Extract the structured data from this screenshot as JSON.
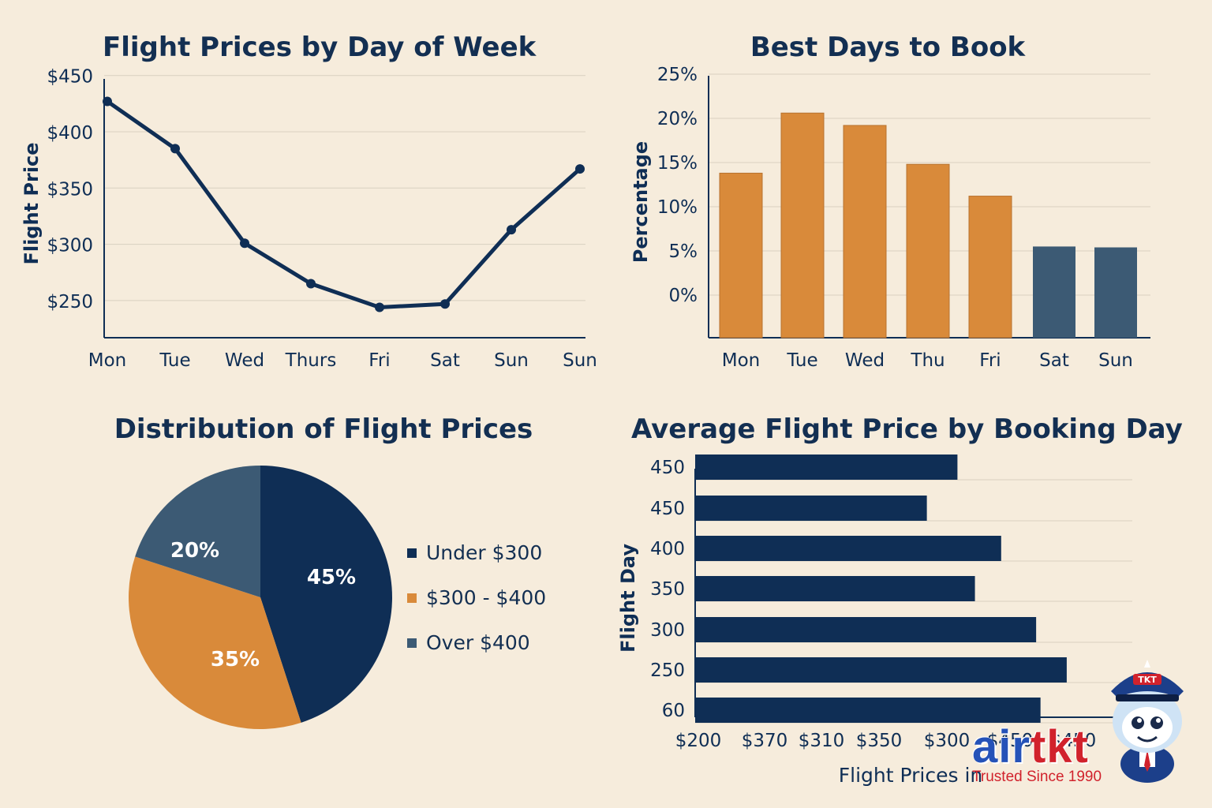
{
  "colors": {
    "navy": "#0f2e55",
    "slate": "#3c5a74",
    "orange": "#d98a3a",
    "background": "#f6ecdc",
    "grid": "#d9d0c0",
    "brand_blue": "#2552b8",
    "brand_red": "#d1222c"
  },
  "chart_data": [
    {
      "type": "line",
      "title": "Flight Prices by Day of Week",
      "ylabel": "Flight Price",
      "xlabel": "",
      "categories": [
        "Mon",
        "Tue",
        "Wed",
        "Thurs",
        "Fri",
        "Sat",
        "Sun",
        "Sun"
      ],
      "values": [
        427,
        385,
        301,
        265,
        244,
        247,
        313,
        367
      ],
      "yticks": [
        "$450",
        "$400",
        "$350",
        "$300",
        "$250"
      ],
      "ylim": [
        217,
        461
      ],
      "grid": true
    },
    {
      "type": "bar",
      "title": "Best Days to Book",
      "ylabel": "Percentage",
      "xlabel": "",
      "categories": [
        "Mon",
        "Tue",
        "Wed",
        "Thu",
        "Fri",
        "Sat",
        "Sun"
      ],
      "values": [
        13.8,
        20.6,
        19.2,
        14.8,
        11.2,
        5.5,
        5.4
      ],
      "bar_colors": [
        "orange",
        "orange",
        "orange",
        "orange",
        "orange",
        "slate",
        "slate"
      ],
      "yticks": [
        "25%",
        "20%",
        "15%",
        "10%",
        "5%",
        "0%"
      ],
      "ylim": [
        0,
        25
      ],
      "grid": true
    },
    {
      "type": "pie",
      "title": "Distribution of Flight Prices",
      "slices": [
        {
          "label": "Under $300",
          "value": 45,
          "display": "45%",
          "color": "navy"
        },
        {
          "label": "$300 - $400",
          "value": 35,
          "display": "35%",
          "color": "orange"
        },
        {
          "label": "Over $400",
          "value": 20,
          "display": "20%",
          "color": "slate"
        }
      ],
      "legend_position": "right"
    },
    {
      "type": "bar",
      "orientation": "horizontal",
      "title": "Average Flight Price by Booking Day",
      "ylabel": "Flight Day",
      "xlabel": "Flight Prices in",
      "categories": [
        "450",
        "450",
        "400",
        "350",
        "300",
        "250",
        "60"
      ],
      "values": [
        0.6,
        0.53,
        0.7,
        0.64,
        0.78,
        0.85,
        0.79
      ],
      "value_scale": "fraction of axis width",
      "xticks": [
        "$200",
        "$370",
        "$310",
        "$350",
        "$300",
        "$450",
        "$450"
      ],
      "grid": true
    }
  ],
  "branding": {
    "name_part1": "air",
    "name_part2": "tkt",
    "tagline": "Trusted Since 1990",
    "mascot_cap_text": "TKT"
  }
}
